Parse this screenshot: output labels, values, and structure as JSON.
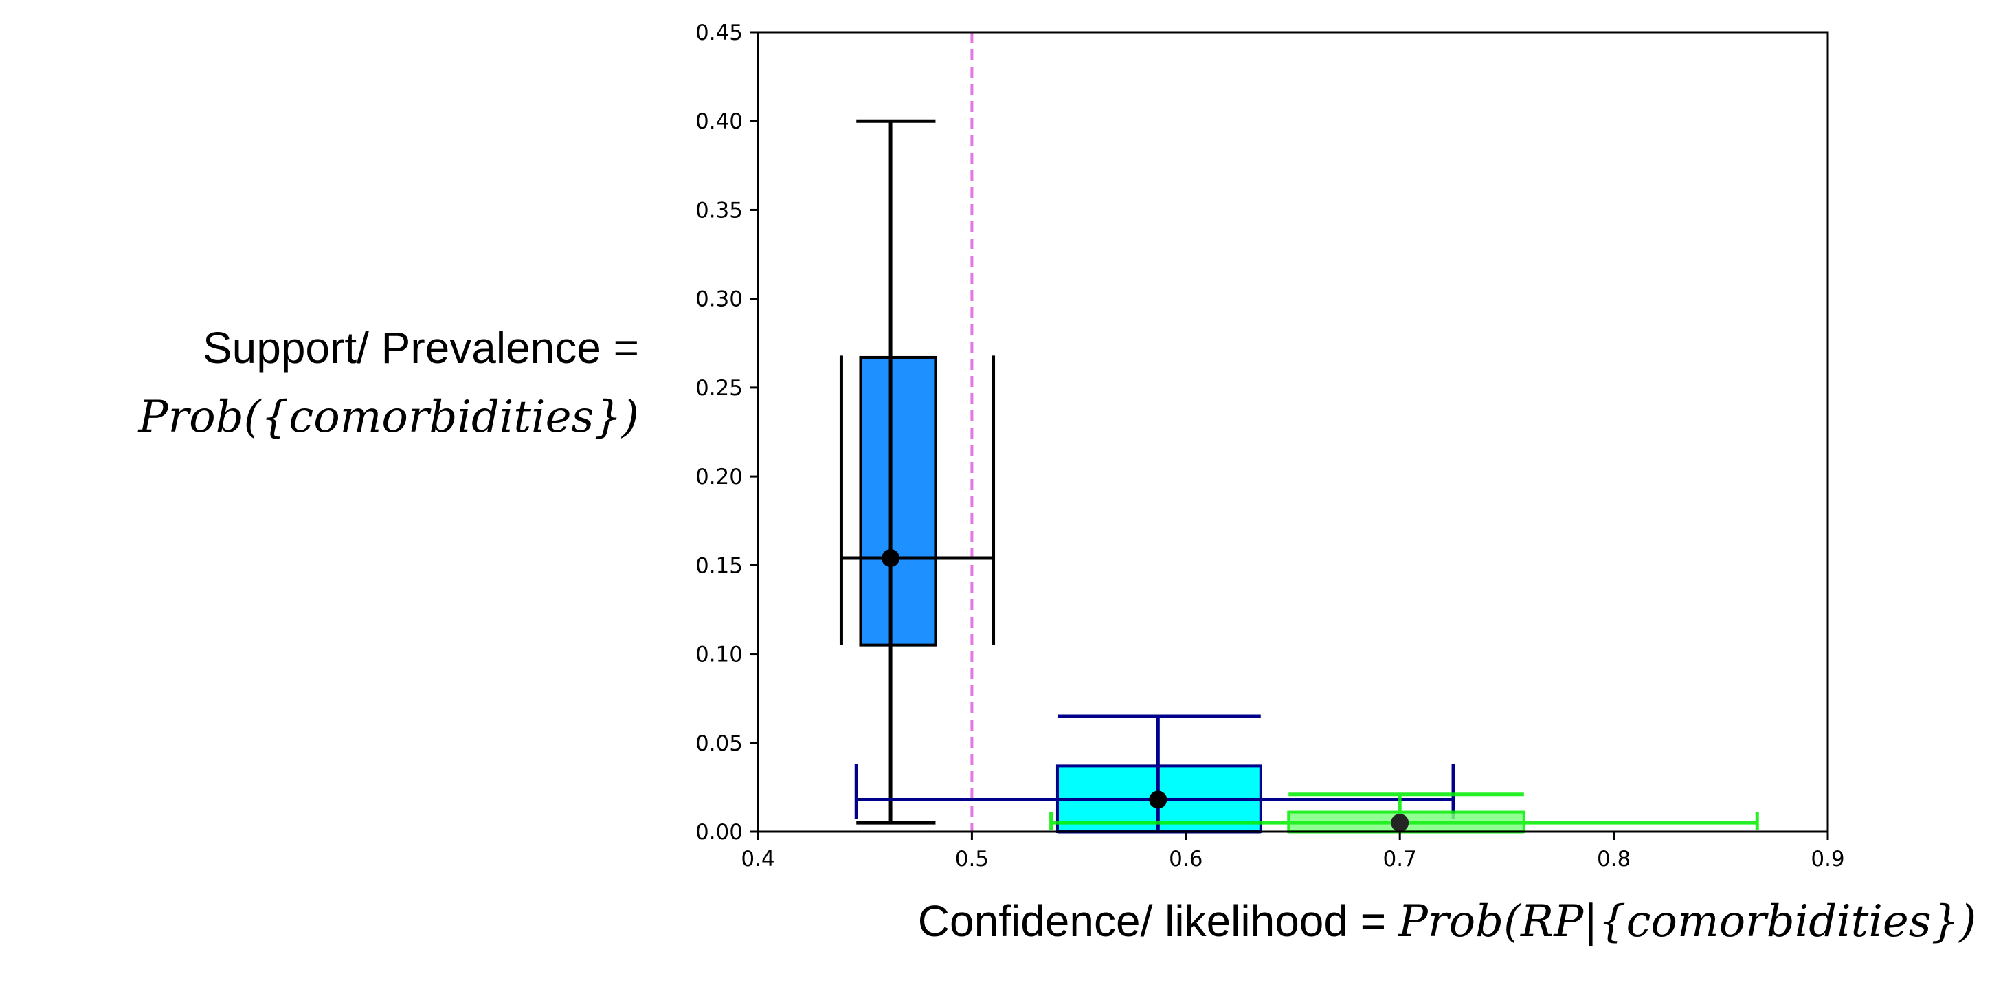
{
  "chart_data": {
    "type": "scatter",
    "title": "",
    "xlabel_prefix": "Confidence/ likelihood = ",
    "xlabel_math": "Prob(RP|{comorbidities})",
    "ylabel_line1": "Support/ Prevalence =",
    "ylabel_math": "Prob({comorbidities})",
    "xlim": [
      0.4,
      0.9
    ],
    "ylim": [
      0.0,
      0.45
    ],
    "xticks": [
      0.4,
      0.5,
      0.6,
      0.7,
      0.8,
      0.9
    ],
    "xtick_labels": [
      "0.4",
      "0.5",
      "0.6",
      "0.7",
      "0.8",
      "0.9"
    ],
    "yticks": [
      0.0,
      0.05,
      0.1,
      0.15,
      0.2,
      0.25,
      0.3,
      0.35,
      0.4,
      0.45
    ],
    "ytick_labels": [
      "0.00",
      "0.05",
      "0.10",
      "0.15",
      "0.20",
      "0.25",
      "0.30",
      "0.35",
      "0.40",
      "0.45"
    ],
    "grid": false,
    "reference_line": {
      "x": 0.5,
      "color": "#e377e3",
      "style": "dashed"
    },
    "boxes": [
      {
        "point": [
          0.462,
          0.154
        ],
        "box_x": [
          0.448,
          0.483
        ],
        "box_y": [
          0.105,
          0.267
        ],
        "whisker_x": [
          0.439,
          0.51
        ],
        "whisker_y": [
          0.005,
          0.4
        ],
        "y_cap_x": [
          0.446,
          0.483
        ],
        "x_cap_y": [
          0.105,
          0.268
        ],
        "fill": "#1e90ff",
        "edge": "#000000",
        "whisker": "#000000",
        "opacity": 1
      },
      {
        "point": [
          0.587,
          0.018
        ],
        "box_x": [
          0.54,
          0.635
        ],
        "box_y": [
          0.0,
          0.037
        ],
        "whisker_x": [
          0.446,
          0.725
        ],
        "whisker_y": [
          0.0,
          0.065
        ],
        "y_cap_x": [
          0.54,
          0.635
        ],
        "x_cap_y": [
          0.007,
          0.038
        ],
        "fill": "#00ffff",
        "edge": "#00008b",
        "whisker": "#00008b",
        "opacity": 1
      },
      {
        "point": [
          0.7,
          0.005
        ],
        "box_x": [
          0.648,
          0.758
        ],
        "box_y": [
          0.0,
          0.011
        ],
        "whisker_x": [
          0.537,
          0.867
        ],
        "whisker_y": [
          0.0,
          0.021
        ],
        "y_cap_x": [
          0.648,
          0.758
        ],
        "x_cap_y": [
          0.001,
          0.011
        ],
        "fill": "#7fff7f",
        "edge": "#00ee00",
        "whisker": "#00ee00",
        "opacity": 0.85
      }
    ]
  }
}
